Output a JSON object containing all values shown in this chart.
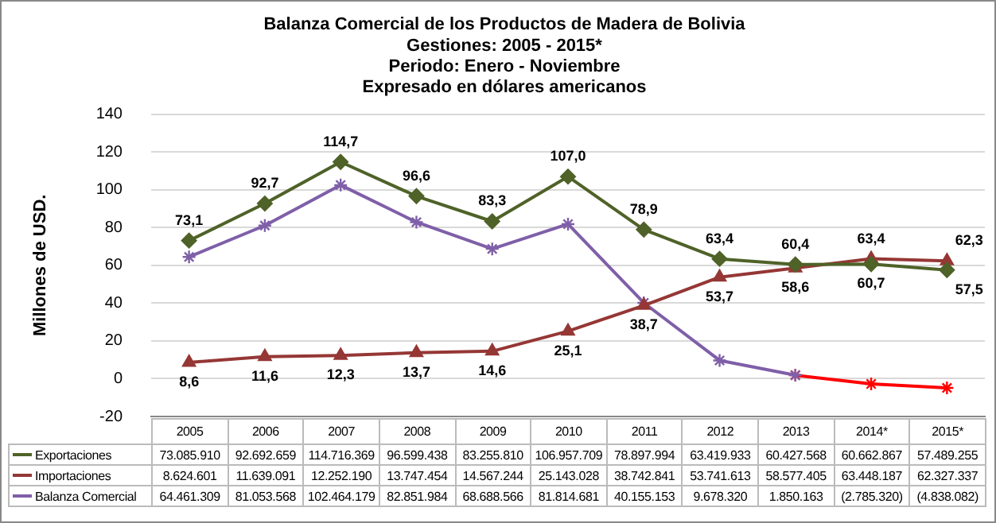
{
  "chart_data": {
    "type": "line",
    "title": "Balanza Comercial de los Productos de Madera de Bolivia",
    "subtitle": "Gestiones: 2005 - 2015*\nPeriodo: Enero - Noviembre\nExpresado en dólares americanos",
    "ylabel": "Millones de USD.",
    "categories": [
      "2005",
      "2006",
      "2007",
      "2008",
      "2009",
      "2010",
      "2011",
      "2012",
      "2013",
      "2014*",
      "2015*"
    ],
    "ylim": [
      -20,
      140
    ],
    "yticks": [
      -20,
      0,
      20,
      40,
      60,
      80,
      100,
      120,
      140
    ],
    "grid": "y",
    "legend": "bottom",
    "line_style": "solid",
    "series": [
      {
        "name": "Exportaciones",
        "color": "#4f6228",
        "marker": "diamond",
        "values": [
          73.08591,
          92.692659,
          114.716369,
          96.599438,
          83.25581,
          106.957709,
          78.897994,
          63.419933,
          60.427568,
          60.662867,
          57.489255
        ],
        "value_labels": [
          "73,1",
          "92,7",
          "114,7",
          "96,6",
          "83,3",
          "107,0",
          "78,9",
          "63,4",
          "60,4",
          "60,7",
          "57,5"
        ]
      },
      {
        "name": "Importaciones",
        "color": "#953735",
        "marker": "triangle",
        "values": [
          8.624601,
          11.639091,
          12.25219,
          13.747454,
          14.567244,
          25.143028,
          38.742841,
          53.741613,
          58.577405,
          63.448187,
          62.327337
        ],
        "value_labels": [
          "8,6",
          "11,6",
          "12,3",
          "13,7",
          "14,6",
          "25,1",
          "38,7",
          "53,7",
          "58,6",
          "63,4",
          "62,3"
        ]
      },
      {
        "name": "Balanza Comercial",
        "color": "#7f5fa8",
        "marker": "cross",
        "values": [
          64.461309,
          81.053568,
          102.464179,
          82.851984,
          68.688566,
          81.814681,
          40.155153,
          9.67832,
          1.850163,
          null,
          null
        ]
      },
      {
        "color": "#ff0000",
        "marker": "cross",
        "values": [
          null,
          null,
          null,
          null,
          null,
          null,
          null,
          null,
          1.850163,
          -2.78532,
          -4.838082
        ]
      }
    ],
    "annotations": [
      "73.085.910",
      "92.692.659",
      "114.716.369",
      "96.599.438",
      "83.255.810",
      "106.957.709",
      "78.897.994",
      "63.419.933",
      "60.427.568",
      "60.662.867",
      "57.489.255",
      "8.624.601",
      "11.639.091",
      "12.252.190",
      "13.747.454",
      "14.567.244",
      "25.143.028",
      "38.742.841",
      "53.741.613",
      "58.577.405",
      "63.448.187",
      "62.327.337",
      "64.461.309",
      "81.053.568",
      "102.464.179",
      "82.851.984",
      "68.688.566",
      "81.814.681",
      "40.155.153",
      "9.678.320",
      "1.850.163",
      "(2.785.320)",
      "(4.838.082)"
    ]
  }
}
